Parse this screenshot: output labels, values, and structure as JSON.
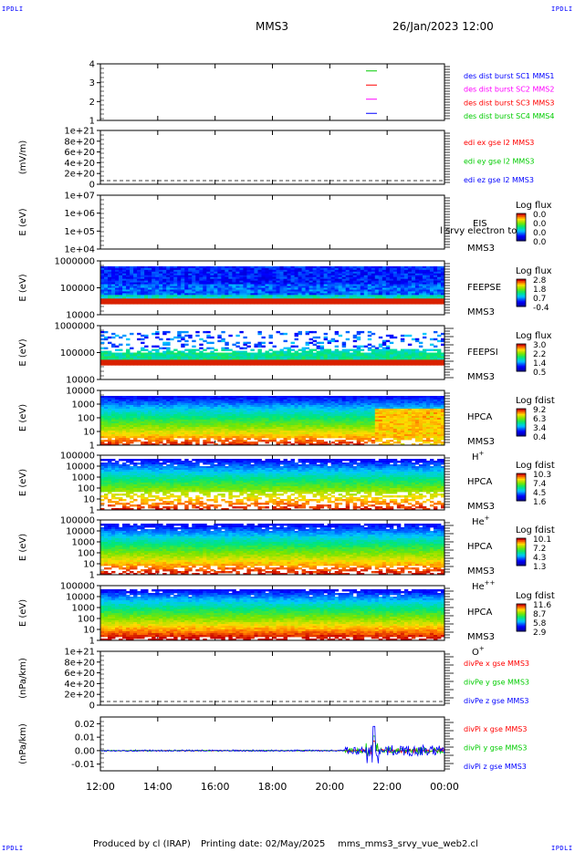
{
  "header": {
    "left_tag": "IPDLI",
    "right_tag": "IPDLI",
    "mission": "MMS3",
    "datetime": "26/Jan/2023 12:00"
  },
  "footer": {
    "left_tag": "IPDLI",
    "right_tag": "IPDLI",
    "produced_by": "Produced by cl (IRAP)",
    "printing_date": "Printing date: 02/May/2025",
    "filename": "mms_mms3_srvy_vue_web2.cl"
  },
  "colors": {
    "blue": "#0000ff",
    "magenta": "#ff00ff",
    "red": "#ff0000",
    "green": "#00cc00",
    "dark_red": "#c00000"
  },
  "chart_data": [
    {
      "type": "line",
      "id": "burst",
      "ylim": [
        0.5,
        4.5
      ],
      "yticks": [
        "4",
        "3",
        "2",
        "1"
      ],
      "series": [
        {
          "name": "des dist burst SC1 MMS1",
          "color": "#0000ff"
        },
        {
          "name": "des dist burst SC2 MMS2",
          "color": "#ff00ff"
        },
        {
          "name": "des dist burst SC3 MMS3",
          "color": "#ff0000"
        },
        {
          "name": "des dist burst SC4 MMS4",
          "color": "#00cc00"
        }
      ],
      "markers": [
        {
          "y": 4,
          "color": "#00cc00"
        },
        {
          "y": 3,
          "color": "#ff0000"
        },
        {
          "y": 2,
          "color": "#ff00ff"
        },
        {
          "y": 1,
          "color": "#0000ff"
        }
      ]
    },
    {
      "type": "line",
      "id": "edi",
      "ylabel": "(mV/m)",
      "yticks": [
        "1e+21",
        "8e+20",
        "6e+20",
        "4e+20",
        "2e+20",
        "0"
      ],
      "ylim": [
        0,
        1e+21
      ],
      "series": [
        {
          "name": "edi ex gse l2 MMS3",
          "color": "#ff0000"
        },
        {
          "name": "edi ey gse l2 MMS3",
          "color": "#00cc00"
        },
        {
          "name": "edi ez gse l2 MMS3",
          "color": "#0000ff"
        }
      ]
    },
    {
      "type": "heatmap",
      "id": "eis",
      "ylabel": "E (eV)",
      "yticks": [
        "1e+07",
        "1e+06",
        "1e+05",
        "1e+04"
      ],
      "labels": [
        "EIS",
        "MMS3"
      ],
      "overlay": "l srvy electron to",
      "colorbar_title": "Log flux",
      "colorbar_ticks": [
        "0.0",
        "0.0",
        "0.0",
        "0.0"
      ]
    },
    {
      "type": "heatmap",
      "id": "feepse",
      "ylabel": "E (eV)",
      "yticks": [
        "1000000",
        "100000",
        "10000"
      ],
      "labels": [
        "FEEPSE",
        "MMS3"
      ],
      "colorbar_title": "Log flux",
      "colorbar_ticks": [
        "2.8",
        "1.8",
        "0.7",
        "-0.4"
      ]
    },
    {
      "type": "heatmap",
      "id": "feepsi",
      "ylabel": "E (eV)",
      "yticks": [
        "1000000",
        "100000",
        "10000"
      ],
      "labels": [
        "FEEPSI",
        "MMS3"
      ],
      "colorbar_title": "Log flux",
      "colorbar_ticks": [
        "3.0",
        "2.2",
        "1.4",
        "0.5"
      ]
    },
    {
      "type": "heatmap",
      "id": "hpca_h",
      "ylabel": "E (eV)",
      "yticks": [
        "10000",
        "1000",
        "100",
        "10",
        "1"
      ],
      "labels": [
        "HPCA",
        "MMS3"
      ],
      "species": "H",
      "charge": "+",
      "colorbar_title": "Log fdist",
      "colorbar_ticks": [
        "9.2",
        "6.3",
        "3.4",
        "0.4"
      ]
    },
    {
      "type": "heatmap",
      "id": "hpca_he1",
      "ylabel": "E (eV)",
      "yticks": [
        "100000",
        "10000",
        "1000",
        "100",
        "10",
        "1"
      ],
      "labels": [
        "HPCA",
        "MMS3"
      ],
      "species": "He",
      "charge": "+",
      "colorbar_title": "Log fdist",
      "colorbar_ticks": [
        "10.3",
        "7.4",
        "4.5",
        "1.6"
      ]
    },
    {
      "type": "heatmap",
      "id": "hpca_he2",
      "ylabel": "E (eV)",
      "yticks": [
        "100000",
        "10000",
        "1000",
        "100",
        "10",
        "1"
      ],
      "labels": [
        "HPCA",
        "MMS3"
      ],
      "species": "He",
      "charge": "++",
      "colorbar_title": "Log fdist",
      "colorbar_ticks": [
        "10.1",
        "7.2",
        "4.3",
        "1.3"
      ]
    },
    {
      "type": "heatmap",
      "id": "hpca_o",
      "ylabel": "E (eV)",
      "yticks": [
        "100000",
        "10000",
        "1000",
        "100",
        "10",
        "1"
      ],
      "labels": [
        "HPCA",
        "MMS3"
      ],
      "species": "O",
      "charge": "+",
      "colorbar_title": "Log fdist",
      "colorbar_ticks": [
        "11.6",
        "8.7",
        "5.8",
        "2.9"
      ]
    },
    {
      "type": "line",
      "id": "divpe",
      "ylabel": "(nPa/km)",
      "yticks": [
        "1e+21",
        "8e+20",
        "6e+20",
        "4e+20",
        "2e+20",
        "0"
      ],
      "ylim": [
        0,
        1e+21
      ],
      "series": [
        {
          "name": "divPe x gse MMS3",
          "color": "#ff0000"
        },
        {
          "name": "divPe y gse MMS3",
          "color": "#00cc00"
        },
        {
          "name": "divPe z gse MMS3",
          "color": "#0000ff"
        }
      ]
    },
    {
      "type": "line",
      "id": "divpi",
      "ylabel": "(nPa/km)",
      "yticks": [
        "0.02",
        "0.01",
        "0.00",
        "-0.01"
      ],
      "ylim": [
        -0.015,
        0.025
      ],
      "series": [
        {
          "name": "divPi x gse MMS3",
          "color": "#ff0000"
        },
        {
          "name": "divPi y gse MMS3",
          "color": "#00cc00"
        },
        {
          "name": "divPi z gse MMS3",
          "color": "#0000ff"
        }
      ],
      "x": [
        "12:00",
        "14:00",
        "16:00",
        "18:00",
        "20:00",
        "22:00",
        "00:00"
      ]
    }
  ]
}
